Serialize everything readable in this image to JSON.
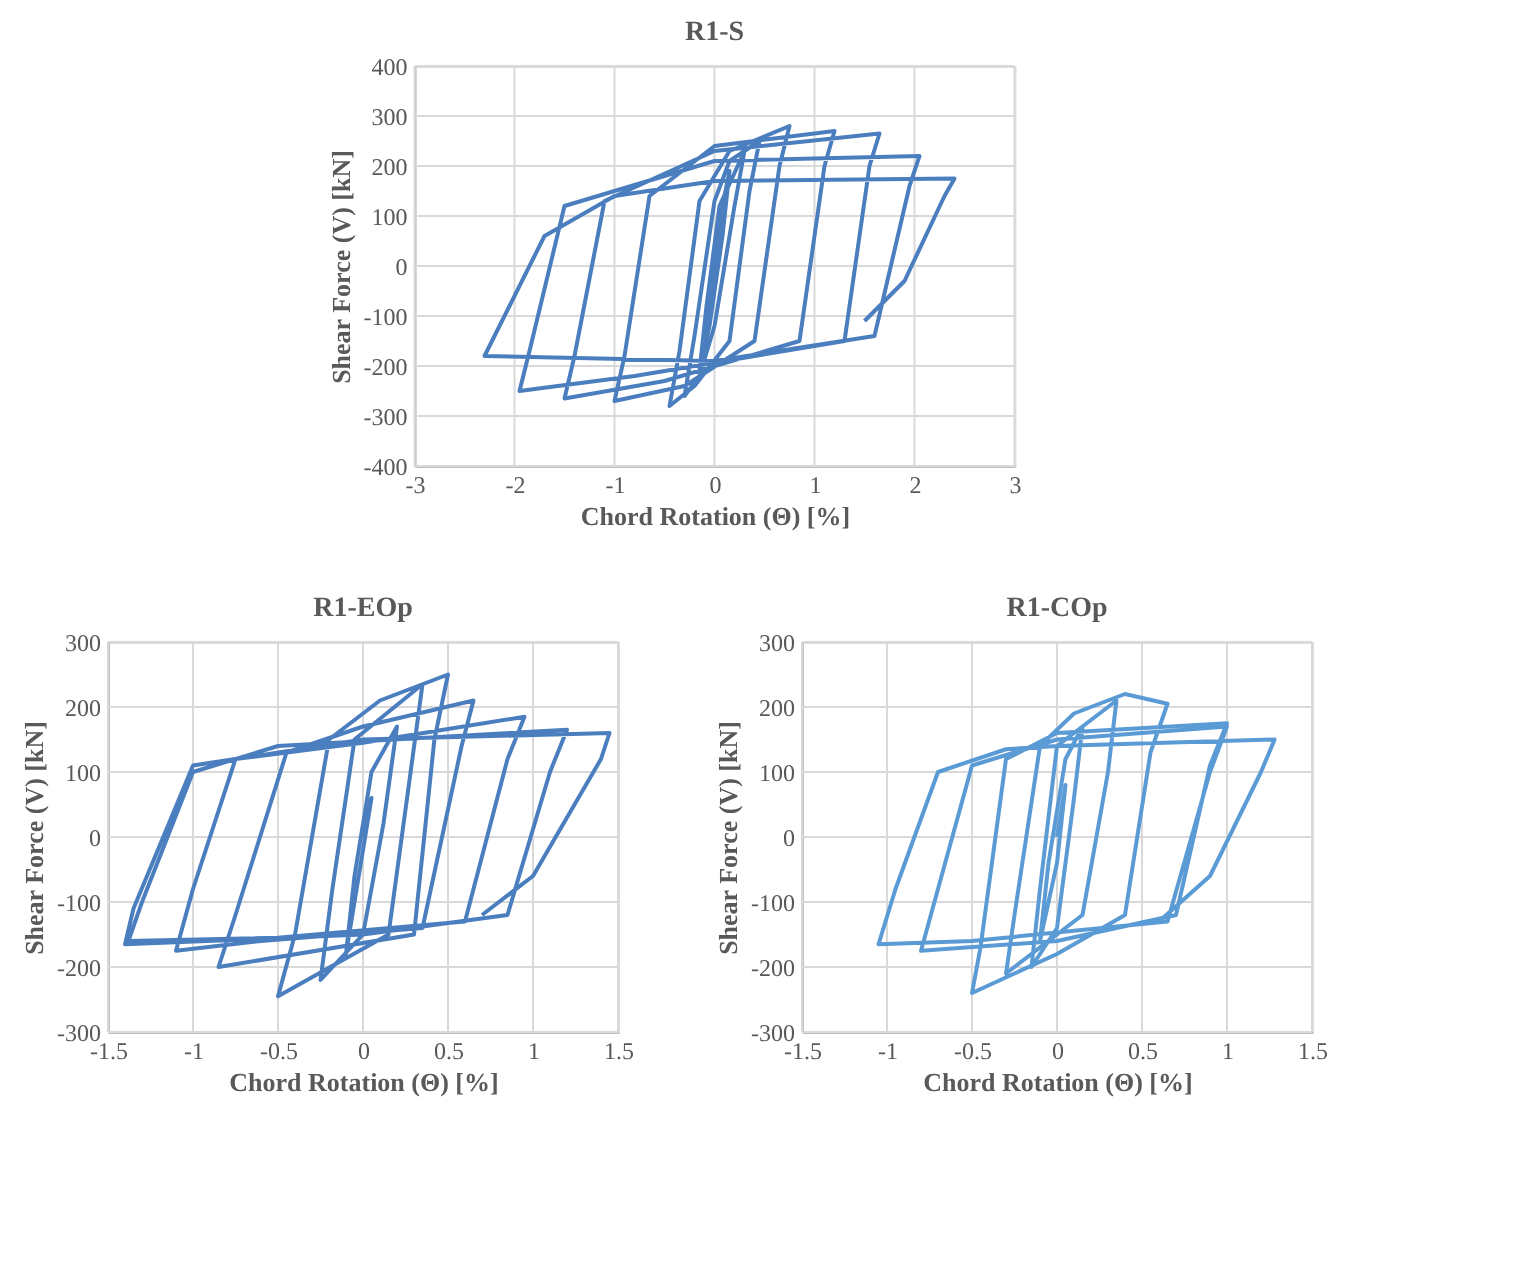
{
  "chart_data": [
    {
      "type": "line",
      "title": "R1-S",
      "xlabel": "Chord Rotation (Θ) [%]",
      "ylabel": "Shear Force (V) [kN]",
      "xlim": [
        -3,
        3
      ],
      "ylim": [
        -400,
        400
      ],
      "xticks": [
        -3,
        -2,
        -1,
        0,
        1,
        2,
        3
      ],
      "yticks": [
        -400,
        -300,
        -200,
        -100,
        0,
        100,
        200,
        300,
        400
      ],
      "grid": true,
      "series": [
        {
          "color": "#4a7ebf",
          "x": [
            0,
            0.08,
            0.03,
            -0.02,
            -0.08,
            -0.03,
            0.02,
            0.15,
            0.08,
            -0.05,
            -0.15,
            -0.08,
            0.05,
            0.3,
            0.2,
            0.0,
            -0.15,
            -0.3,
            -0.2,
            0.0,
            0.15,
            0.45,
            0.35,
            0.15,
            -0.2,
            -0.45,
            -0.35,
            -0.15,
            0.15,
            0.75,
            0.65,
            0.4,
            -0.3,
            -1.0,
            -0.9,
            -0.65,
            0.0,
            1.2,
            1.1,
            0.85,
            -0.5,
            -1.5,
            -1.4,
            -1.1,
            0.0,
            1.65,
            1.55,
            1.3,
            -0.8,
            -1.95,
            -1.85,
            -1.5,
            0.0,
            2.05,
            1.95,
            1.6,
            0.0,
            -2.3,
            -2.2,
            -1.7,
            -1.0,
            0.0,
            2.4,
            2.3,
            1.9,
            1.5
          ],
          "values": [
            0,
            130,
            40,
            -60,
            -150,
            -40,
            60,
            190,
            60,
            -120,
            -210,
            -80,
            120,
            230,
            120,
            -120,
            -220,
            -260,
            -140,
            130,
            210,
            250,
            150,
            -150,
            -240,
            -280,
            -170,
            130,
            230,
            280,
            200,
            -150,
            -240,
            -270,
            -180,
            140,
            240,
            270,
            200,
            -150,
            -230,
            -265,
            -180,
            130,
            230,
            265,
            200,
            -150,
            -220,
            -250,
            -170,
            120,
            210,
            220,
            160,
            -140,
            -190,
            -180,
            -140,
            60,
            140,
            170,
            175,
            140,
            -30,
            -110
          ]
        }
      ]
    },
    {
      "type": "line",
      "title": "R1-EOp",
      "xlabel": "Chord Rotation (Θ) [%]",
      "ylabel": "Shear Force (V) [kN]",
      "xlim": [
        -1.5,
        1.5
      ],
      "ylim": [
        -300,
        300
      ],
      "xticks": [
        -1.5,
        -1,
        -0.5,
        0,
        0.5,
        1,
        1.5
      ],
      "yticks": [
        -300,
        -200,
        -100,
        0,
        100,
        200,
        300
      ],
      "grid": true,
      "series": [
        {
          "color": "#4a7ebf",
          "x": [
            0,
            0.05,
            0.0,
            -0.1,
            -0.05,
            0.05,
            0.2,
            0.12,
            0.0,
            -0.25,
            -0.18,
            -0.05,
            0.35,
            0.28,
            0.15,
            -0.5,
            -0.4,
            -0.2,
            0.1,
            0.5,
            0.42,
            0.3,
            -0.85,
            -0.75,
            -0.45,
            0.0,
            0.65,
            0.58,
            0.35,
            -0.6,
            -1.1,
            -1.0,
            -0.75,
            0.0,
            0.95,
            0.85,
            0.6,
            -0.5,
            -1.38,
            -1.3,
            -1.0,
            -0.5,
            1.2,
            1.1,
            0.85,
            0.0,
            -1.4,
            -1.35,
            -1.0,
            0.0,
            1.45,
            1.4,
            1.0,
            0.7
          ],
          "values": [
            0,
            60,
            -20,
            -180,
            -60,
            100,
            170,
            20,
            -150,
            -220,
            -80,
            150,
            235,
            100,
            -150,
            -245,
            -150,
            150,
            210,
            250,
            150,
            -150,
            -200,
            -120,
            130,
            170,
            210,
            140,
            -140,
            -160,
            -175,
            -80,
            120,
            145,
            185,
            120,
            -130,
            -155,
            -160,
            -100,
            100,
            140,
            165,
            100,
            -120,
            -150,
            -165,
            -110,
            110,
            150,
            160,
            120,
            -60,
            -120
          ]
        }
      ]
    },
    {
      "type": "line",
      "title": "R1-COp",
      "xlabel": "Chord Rotation (Θ) [%]",
      "ylabel": "Shear Force (V) [kN]",
      "xlim": [
        -1.5,
        1.5
      ],
      "ylim": [
        -300,
        300
      ],
      "xticks": [
        -1.5,
        -1,
        -0.5,
        0,
        0.5,
        1,
        1.5
      ],
      "yticks": [
        -300,
        -200,
        -100,
        0,
        100,
        200,
        300
      ],
      "grid": true,
      "series": [
        {
          "color": "#5b9bd5",
          "x": [
            0,
            0.05,
            0.0,
            -0.1,
            -0.05,
            0.05,
            0.15,
            0.1,
            0.0,
            -0.15,
            -0.1,
            0.0,
            0.35,
            0.3,
            0.15,
            -0.3,
            -0.25,
            -0.1,
            0.1,
            0.4,
            0.65,
            0.55,
            0.4,
            0.0,
            -0.5,
            -0.45,
            -0.3,
            0.0,
            1.0,
            0.9,
            0.7,
            0.0,
            -0.8,
            -0.7,
            -0.5,
            0.0,
            1.0,
            0.9,
            0.65,
            -0.5,
            -1.05,
            -0.95,
            -0.7,
            -0.3,
            0.0,
            1.28,
            1.2,
            0.9,
            0.6
          ],
          "values": [
            0,
            80,
            -40,
            -160,
            -40,
            120,
            170,
            60,
            -140,
            -200,
            -80,
            140,
            210,
            100,
            -120,
            -210,
            -120,
            140,
            190,
            220,
            205,
            130,
            -120,
            -180,
            -240,
            -170,
            120,
            160,
            175,
            110,
            -120,
            -160,
            -175,
            -80,
            110,
            150,
            170,
            100,
            -130,
            -160,
            -165,
            -80,
            100,
            135,
            140,
            150,
            100,
            -60,
            -130
          ]
        }
      ]
    }
  ]
}
